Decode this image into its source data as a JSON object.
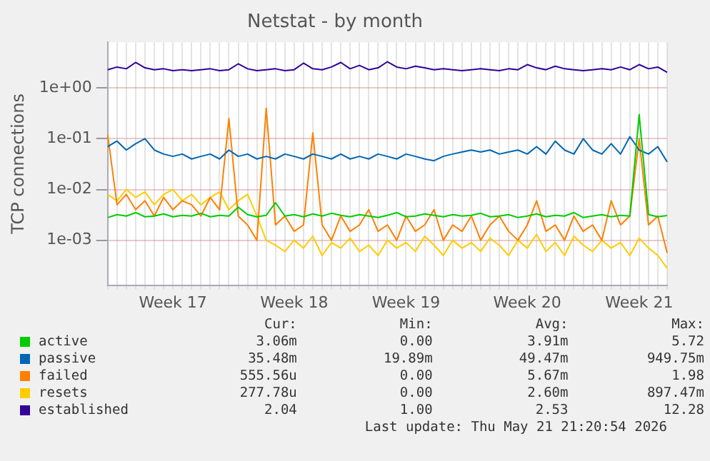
{
  "chart_data": {
    "type": "line",
    "title": "Netstat - by month",
    "ylabel": "TCP connections",
    "log": "y",
    "grid": true,
    "legend": "bottom",
    "marker": "none",
    "line_style": "solid",
    "ylim": [
      0.00013,
      8
    ],
    "yticks": [
      {
        "value": 0.001,
        "label": "1e-03"
      },
      {
        "value": 0.01,
        "label": "1e-02"
      },
      {
        "value": 0.1,
        "label": "1e-01"
      },
      {
        "value": 1,
        "label": "1e+00"
      }
    ],
    "categories": [
      null,
      null,
      null,
      null,
      null,
      null,
      null,
      "Week 17",
      null,
      null,
      null,
      null,
      null,
      null,
      null,
      null,
      null,
      null,
      null,
      null,
      "Week 18",
      null,
      null,
      null,
      null,
      null,
      null,
      null,
      null,
      null,
      null,
      null,
      "Week 19",
      null,
      null,
      null,
      null,
      null,
      null,
      null,
      null,
      null,
      null,
      null,
      null,
      "Week 20",
      null,
      null,
      null,
      null,
      null,
      null,
      null,
      null,
      null,
      null,
      null,
      "Week 21",
      null,
      null,
      null
    ],
    "series": [
      {
        "name": "active",
        "color": "#00cc00",
        "values": [
          0.0028,
          0.0032,
          0.003,
          0.0035,
          0.0029,
          0.003,
          0.0033,
          0.0029,
          0.0031,
          0.003,
          0.0034,
          0.0029,
          0.0031,
          0.003,
          0.0045,
          0.0032,
          0.0029,
          0.0031,
          0.0055,
          0.003,
          0.0032,
          0.0029,
          0.0033,
          0.003,
          0.0034,
          0.0031,
          0.0029,
          0.0032,
          0.003,
          0.0028,
          0.0031,
          0.0035,
          0.0029,
          0.003,
          0.0033,
          0.0031,
          0.0029,
          0.0032,
          0.003,
          0.0031,
          0.0034,
          0.0029,
          0.003,
          0.0032,
          0.0028,
          0.003,
          0.0033,
          0.0029,
          0.0031,
          0.003,
          0.0035,
          0.0028,
          0.003,
          0.0032,
          0.0029,
          0.0031,
          0.003,
          0.3,
          0.0032,
          0.0029,
          0.00306
        ]
      },
      {
        "name": "passive",
        "color": "#0066b3",
        "values": [
          0.07,
          0.09,
          0.06,
          0.08,
          0.1,
          0.06,
          0.05,
          0.045,
          0.05,
          0.04,
          0.045,
          0.05,
          0.04,
          0.06,
          0.045,
          0.05,
          0.04,
          0.045,
          0.04,
          0.05,
          0.045,
          0.04,
          0.05,
          0.045,
          0.04,
          0.05,
          0.04,
          0.045,
          0.04,
          0.05,
          0.045,
          0.04,
          0.05,
          0.045,
          0.04,
          0.037,
          0.045,
          0.05,
          0.055,
          0.06,
          0.055,
          0.06,
          0.05,
          0.055,
          0.06,
          0.05,
          0.07,
          0.05,
          0.09,
          0.06,
          0.05,
          0.1,
          0.06,
          0.05,
          0.08,
          0.05,
          0.11,
          0.06,
          0.05,
          0.07,
          0.035
        ]
      },
      {
        "name": "failed",
        "color": "#ff8000",
        "values": [
          0.12,
          0.005,
          0.008,
          0.004,
          0.006,
          0.003,
          0.007,
          0.004,
          0.006,
          0.005,
          0.003,
          0.007,
          0.004,
          0.25,
          0.003,
          0.002,
          0.001,
          0.4,
          0.002,
          0.003,
          0.0015,
          0.002,
          0.13,
          0.002,
          0.001,
          0.003,
          0.0015,
          0.002,
          0.004,
          0.0015,
          0.002,
          0.001,
          0.003,
          0.0015,
          0.002,
          0.004,
          0.001,
          0.002,
          0.0015,
          0.003,
          0.001,
          0.002,
          0.003,
          0.0015,
          0.001,
          0.002,
          0.006,
          0.0015,
          0.002,
          0.001,
          0.003,
          0.0015,
          0.002,
          0.001,
          0.006,
          0.002,
          0.003,
          0.1,
          0.002,
          0.003,
          0.00056
        ]
      },
      {
        "name": "resets",
        "color": "#ffcc00",
        "values": [
          0.008,
          0.006,
          0.01,
          0.007,
          0.009,
          0.005,
          0.008,
          0.01,
          0.006,
          0.008,
          0.005,
          0.007,
          0.009,
          0.004,
          0.006,
          0.008,
          0.003,
          0.001,
          0.0008,
          0.0006,
          0.001,
          0.0007,
          0.0012,
          0.0005,
          0.0009,
          0.0007,
          0.0011,
          0.0006,
          0.0008,
          0.0005,
          0.001,
          0.0007,
          0.0009,
          0.0006,
          0.0012,
          0.0008,
          0.0005,
          0.001,
          0.0007,
          0.0009,
          0.0006,
          0.0011,
          0.0008,
          0.0005,
          0.001,
          0.0007,
          0.0013,
          0.0006,
          0.0009,
          0.0005,
          0.0012,
          0.0008,
          0.0006,
          0.001,
          0.0007,
          0.0009,
          0.0005,
          0.0011,
          0.0007,
          0.0005,
          0.00028
        ]
      },
      {
        "name": "established",
        "color": "#330099",
        "values": [
          2.3,
          2.6,
          2.4,
          3.2,
          2.5,
          2.3,
          2.4,
          2.2,
          2.3,
          2.2,
          2.3,
          2.4,
          2.2,
          2.3,
          3.0,
          2.4,
          2.2,
          2.3,
          2.4,
          2.2,
          2.3,
          3.1,
          2.4,
          2.3,
          2.6,
          3.2,
          2.4,
          2.8,
          2.3,
          2.5,
          3.3,
          2.6,
          2.4,
          2.7,
          2.5,
          2.3,
          2.4,
          2.3,
          2.2,
          2.3,
          2.4,
          2.3,
          2.2,
          2.4,
          2.3,
          2.9,
          2.5,
          2.3,
          2.7,
          2.4,
          2.3,
          2.2,
          2.3,
          2.4,
          2.3,
          2.6,
          2.3,
          2.9,
          2.4,
          2.6,
          2.04
        ]
      }
    ],
    "annotations": [
      "Cur:",
      "Min:",
      "Avg:",
      "Max:",
      "3.06m",
      "0.00",
      "3.91m",
      "5.72",
      "35.48m",
      "19.89m",
      "49.47m",
      "949.75m",
      "555.56u",
      "0.00",
      "5.67m",
      "1.98",
      "277.78u",
      "0.00",
      "2.60m",
      "897.47m",
      "2.04",
      "1.00",
      "2.53",
      "12.28",
      "Last update: Thu May 21 21:20:54 2026"
    ]
  }
}
